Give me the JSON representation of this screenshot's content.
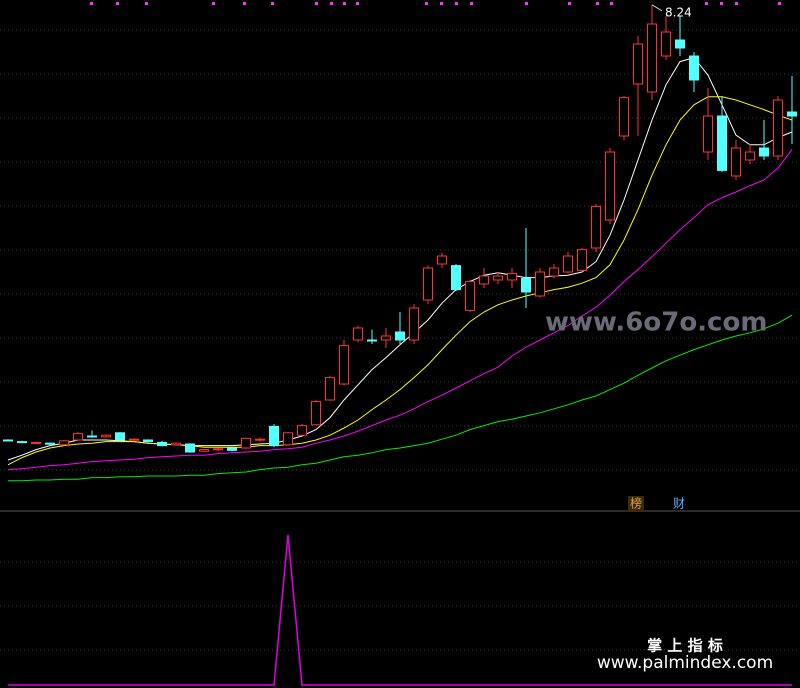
{
  "chart_data": {
    "type": "candlestick",
    "ylim": [
      1.925,
      8.3
    ],
    "grid": true,
    "up_color": "#ff3232",
    "down_color": "#54ffff",
    "candles": [
      [
        2.8,
        2.81,
        2.79,
        2.79
      ],
      [
        2.78,
        2.79,
        2.76,
        2.77
      ],
      [
        2.76,
        2.78,
        2.75,
        2.77
      ],
      [
        2.76,
        2.77,
        2.74,
        2.75
      ],
      [
        2.74,
        2.8,
        2.73,
        2.79
      ],
      [
        2.8,
        2.9,
        2.79,
        2.88
      ],
      [
        2.85,
        2.92,
        2.83,
        2.84
      ],
      [
        2.84,
        2.87,
        2.83,
        2.86
      ],
      [
        2.89,
        2.9,
        2.79,
        2.8
      ],
      [
        2.8,
        2.82,
        2.78,
        2.81
      ],
      [
        2.8,
        2.81,
        2.77,
        2.78
      ],
      [
        2.77,
        2.79,
        2.72,
        2.73
      ],
      [
        2.74,
        2.77,
        2.73,
        2.76
      ],
      [
        2.75,
        2.76,
        2.64,
        2.65
      ],
      [
        2.66,
        2.69,
        2.65,
        2.68
      ],
      [
        2.68,
        2.7,
        2.66,
        2.69
      ],
      [
        2.7,
        2.71,
        2.66,
        2.67
      ],
      [
        2.7,
        2.83,
        2.69,
        2.82
      ],
      [
        2.8,
        2.83,
        2.78,
        2.81
      ],
      [
        2.97,
        3.0,
        2.71,
        2.73
      ],
      [
        2.74,
        2.9,
        2.73,
        2.89
      ],
      [
        2.86,
        3.0,
        2.85,
        2.98
      ],
      [
        2.99,
        3.3,
        2.98,
        3.28
      ],
      [
        3.3,
        3.6,
        3.29,
        3.58
      ],
      [
        3.5,
        4.05,
        3.48,
        3.98
      ],
      [
        4.05,
        4.23,
        4.02,
        4.2
      ],
      [
        4.05,
        4.18,
        4.0,
        4.04
      ],
      [
        4.05,
        4.2,
        3.95,
        4.1
      ],
      [
        4.15,
        4.4,
        4.0,
        4.05
      ],
      [
        4.05,
        4.5,
        4.0,
        4.45
      ],
      [
        4.55,
        4.98,
        4.5,
        4.95
      ],
      [
        5.0,
        5.14,
        4.95,
        5.1
      ],
      [
        4.98,
        5.0,
        4.66,
        4.68
      ],
      [
        4.42,
        4.8,
        4.4,
        4.78
      ],
      [
        4.75,
        4.95,
        4.7,
        4.85
      ],
      [
        4.8,
        4.9,
        4.75,
        4.85
      ],
      [
        4.8,
        4.95,
        4.7,
        4.88
      ],
      [
        4.82,
        5.45,
        4.45,
        4.65
      ],
      [
        4.6,
        4.95,
        4.58,
        4.9
      ],
      [
        4.85,
        5.0,
        4.82,
        4.95
      ],
      [
        4.9,
        5.15,
        4.88,
        5.1
      ],
      [
        4.92,
        5.2,
        4.9,
        5.18
      ],
      [
        5.2,
        5.75,
        5.15,
        5.72
      ],
      [
        5.55,
        6.45,
        5.5,
        6.4
      ],
      [
        6.6,
        7.1,
        6.55,
        7.08
      ],
      [
        7.25,
        7.85,
        6.6,
        7.75
      ],
      [
        7.15,
        8.24,
        7.05,
        8.0
      ],
      [
        7.6,
        8.1,
        7.55,
        7.9
      ],
      [
        7.8,
        8.1,
        7.6,
        7.7
      ],
      [
        7.6,
        7.65,
        7.15,
        7.3
      ],
      [
        6.4,
        7.2,
        6.3,
        6.85
      ],
      [
        6.85,
        7.1,
        6.15,
        6.17
      ],
      [
        6.1,
        6.55,
        6.05,
        6.45
      ],
      [
        6.3,
        6.5,
        6.25,
        6.4
      ],
      [
        6.45,
        6.8,
        6.3,
        6.35
      ],
      [
        6.35,
        7.1,
        6.3,
        7.05
      ],
      [
        6.9,
        7.35,
        6.5,
        6.85
      ]
    ],
    "high_index": 46,
    "series": [
      {
        "color": "#ffffff",
        "values": [
          2.55,
          2.61,
          2.68,
          2.73,
          2.76,
          2.8,
          2.8,
          2.8,
          2.79,
          2.78,
          2.76,
          2.75,
          2.74,
          2.73,
          2.73,
          2.73,
          2.73,
          2.74,
          2.75,
          2.76,
          2.8,
          2.85,
          2.93,
          3.08,
          3.3,
          3.49,
          3.68,
          3.83,
          3.99,
          4.14,
          4.3,
          4.51,
          4.68,
          4.78,
          4.86,
          4.89,
          4.86,
          4.83,
          4.83,
          4.85,
          4.86,
          4.9,
          5.03,
          5.36,
          5.8,
          6.3,
          6.8,
          7.24,
          7.53,
          7.58,
          7.36,
          6.99,
          6.61,
          6.49,
          6.49,
          6.58,
          6.65
        ]
      },
      {
        "color": "#ffff00",
        "values": [
          2.49,
          2.58,
          2.65,
          2.7,
          2.73,
          2.75,
          2.76,
          2.78,
          2.78,
          2.78,
          2.76,
          2.75,
          2.74,
          2.73,
          2.71,
          2.71,
          2.71,
          2.71,
          2.73,
          2.73,
          2.74,
          2.76,
          2.8,
          2.86,
          2.95,
          3.05,
          3.18,
          3.3,
          3.43,
          3.58,
          3.74,
          3.93,
          4.11,
          4.28,
          4.4,
          4.49,
          4.55,
          4.6,
          4.64,
          4.68,
          4.71,
          4.76,
          4.83,
          4.99,
          5.3,
          5.68,
          6.11,
          6.49,
          6.8,
          6.99,
          7.09,
          7.09,
          7.05,
          6.99,
          6.93,
          6.86,
          6.8
        ]
      },
      {
        "color": "#ff00ff",
        "values": [
          2.43,
          2.44,
          2.46,
          2.48,
          2.49,
          2.51,
          2.53,
          2.54,
          2.55,
          2.56,
          2.58,
          2.59,
          2.6,
          2.61,
          2.61,
          2.63,
          2.64,
          2.65,
          2.66,
          2.68,
          2.69,
          2.71,
          2.76,
          2.8,
          2.85,
          2.91,
          2.98,
          3.05,
          3.11,
          3.19,
          3.28,
          3.36,
          3.45,
          3.54,
          3.63,
          3.71,
          3.85,
          3.96,
          4.05,
          4.14,
          4.23,
          4.35,
          4.46,
          4.61,
          4.78,
          4.93,
          5.09,
          5.26,
          5.43,
          5.58,
          5.74,
          5.83,
          5.9,
          5.98,
          6.05,
          6.2,
          6.43
        ]
      },
      {
        "color": "#00ee00",
        "values": [
          2.29,
          2.29,
          2.3,
          2.3,
          2.31,
          2.31,
          2.33,
          2.33,
          2.34,
          2.34,
          2.35,
          2.35,
          2.35,
          2.36,
          2.36,
          2.38,
          2.39,
          2.4,
          2.43,
          2.45,
          2.46,
          2.49,
          2.51,
          2.55,
          2.59,
          2.61,
          2.64,
          2.68,
          2.7,
          2.73,
          2.76,
          2.81,
          2.86,
          2.93,
          2.98,
          3.03,
          3.06,
          3.1,
          3.14,
          3.19,
          3.24,
          3.3,
          3.35,
          3.43,
          3.51,
          3.61,
          3.7,
          3.79,
          3.86,
          3.93,
          3.99,
          4.05,
          4.1,
          4.14,
          4.19,
          4.26,
          4.36
        ]
      }
    ],
    "indicator": {
      "color": "#e000e0",
      "ylim": [
        0,
        1.1
      ],
      "values": [
        0,
        0,
        0,
        0,
        0,
        0,
        0,
        0,
        0,
        0,
        0,
        0,
        0,
        0,
        0,
        0,
        0,
        0,
        0,
        0,
        1,
        0,
        0,
        0,
        0,
        0,
        0,
        0,
        0,
        0,
        0,
        0,
        0,
        0,
        0,
        0,
        0,
        0,
        0,
        0,
        0,
        0,
        0,
        0,
        0,
        0,
        0,
        0,
        0,
        0,
        0,
        0,
        0,
        0,
        0,
        0,
        0
      ]
    },
    "badges": [
      "榜",
      "财"
    ],
    "watermark": "www.6o7o.com",
    "brand": "掌 上 指 标",
    "brand_url": "www.palmindex.com"
  }
}
